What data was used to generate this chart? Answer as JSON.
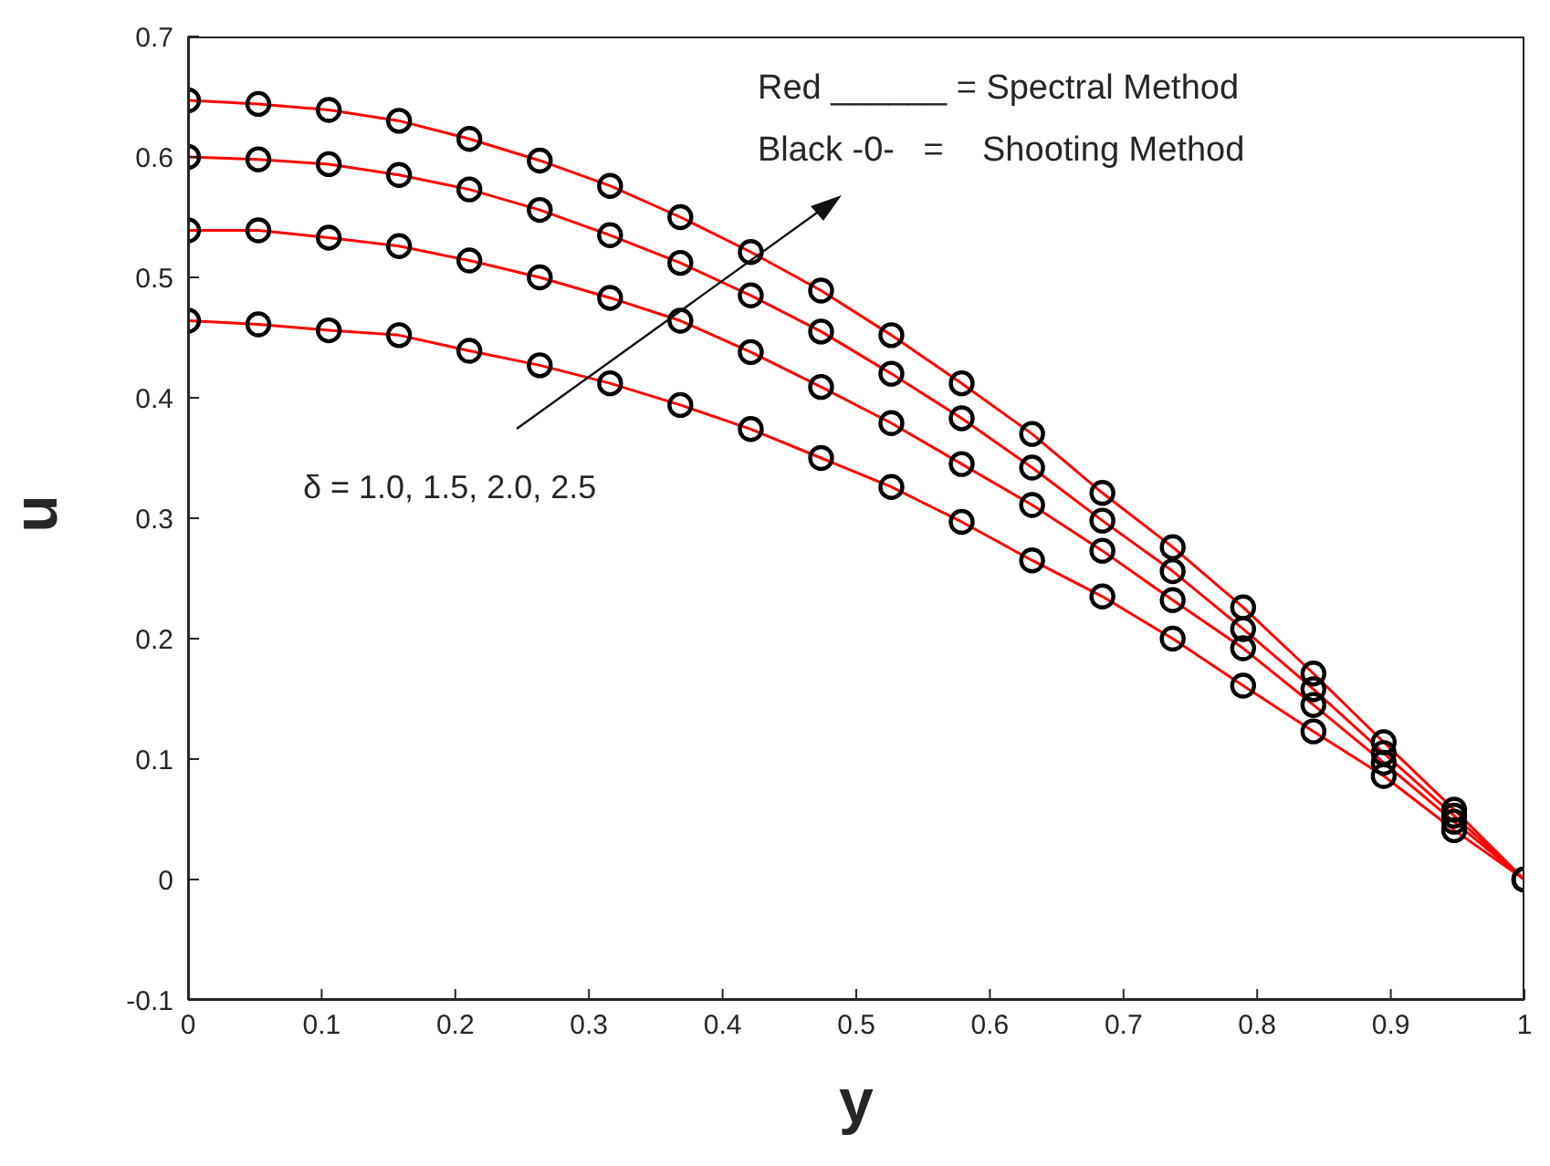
{
  "chart_data": {
    "type": "line",
    "xlabel": "y",
    "ylabel": "u",
    "annotations": [
      "Red ______ = Spectral Method",
      "Black -0-   =    Shooting Method",
      "δ = 1.0, 1.5, 2.0, 2.5"
    ],
    "x": [
      0,
      0.0526,
      0.1053,
      0.1579,
      0.2105,
      0.2632,
      0.3158,
      0.3684,
      0.4211,
      0.4737,
      0.5263,
      0.5789,
      0.6316,
      0.6842,
      0.7368,
      0.7895,
      0.8421,
      0.8947,
      0.9474,
      1
    ],
    "xlim": [
      0,
      1
    ],
    "xticks": [
      0,
      0.1,
      0.2,
      0.3,
      0.4,
      0.5,
      0.6,
      0.7,
      0.8,
      0.9,
      1
    ],
    "ylim": [
      -0.1,
      0.7
    ],
    "yticks": [
      -0.1,
      0,
      0.1,
      0.2,
      0.3,
      0.4,
      0.5,
      0.6,
      0.7
    ],
    "grid": false,
    "series": [
      {
        "color": "#ff0000",
        "marker": "none",
        "values": [
          0.464,
          0.461,
          0.456,
          0.452,
          0.439,
          0.427,
          0.412,
          0.394,
          0.374,
          0.35,
          0.326,
          0.297,
          0.265,
          0.235,
          0.2,
          0.161,
          0.123,
          0.086,
          0.041,
          0
        ]
      },
      {
        "color": "#ff0000",
        "marker": "none",
        "values": [
          0.539,
          0.539,
          0.533,
          0.526,
          0.514,
          0.5,
          0.483,
          0.464,
          0.438,
          0.409,
          0.379,
          0.345,
          0.311,
          0.273,
          0.232,
          0.192,
          0.145,
          0.097,
          0.048,
          0
        ]
      },
      {
        "color": "#ff0000",
        "marker": "none",
        "values": [
          0.6,
          0.598,
          0.594,
          0.585,
          0.573,
          0.556,
          0.535,
          0.512,
          0.485,
          0.455,
          0.42,
          0.383,
          0.342,
          0.298,
          0.256,
          0.208,
          0.158,
          0.105,
          0.053,
          0
        ]
      },
      {
        "color": "#ff0000",
        "marker": "none",
        "values": [
          0.647,
          0.644,
          0.639,
          0.63,
          0.615,
          0.597,
          0.576,
          0.55,
          0.521,
          0.489,
          0.452,
          0.412,
          0.37,
          0.321,
          0.276,
          0.226,
          0.171,
          0.114,
          0.058,
          0
        ]
      },
      {
        "type": "scatter",
        "color": "#000000",
        "marker": "circle",
        "values": [
          0.464,
          0.461,
          0.456,
          0.452,
          0.439,
          0.427,
          0.412,
          0.394,
          0.374,
          0.35,
          0.326,
          0.297,
          0.265,
          0.235,
          0.2,
          0.161,
          0.123,
          0.086,
          0.041,
          0
        ]
      },
      {
        "type": "scatter",
        "color": "#000000",
        "marker": "circle",
        "values": [
          0.539,
          0.539,
          0.533,
          0.526,
          0.514,
          0.5,
          0.483,
          0.464,
          0.438,
          0.409,
          0.379,
          0.345,
          0.311,
          0.273,
          0.232,
          0.192,
          0.145,
          0.097,
          0.048,
          0
        ]
      },
      {
        "type": "scatter",
        "color": "#000000",
        "marker": "circle",
        "values": [
          0.6,
          0.598,
          0.594,
          0.585,
          0.573,
          0.556,
          0.535,
          0.512,
          0.485,
          0.455,
          0.42,
          0.383,
          0.342,
          0.298,
          0.256,
          0.208,
          0.158,
          0.105,
          0.053,
          0
        ]
      },
      {
        "type": "scatter",
        "color": "#000000",
        "marker": "circle",
        "values": [
          0.647,
          0.644,
          0.639,
          0.63,
          0.615,
          0.597,
          0.576,
          0.55,
          0.521,
          0.489,
          0.452,
          0.412,
          0.37,
          0.321,
          0.276,
          0.226,
          0.171,
          0.114,
          0.058,
          0
        ]
      }
    ]
  }
}
